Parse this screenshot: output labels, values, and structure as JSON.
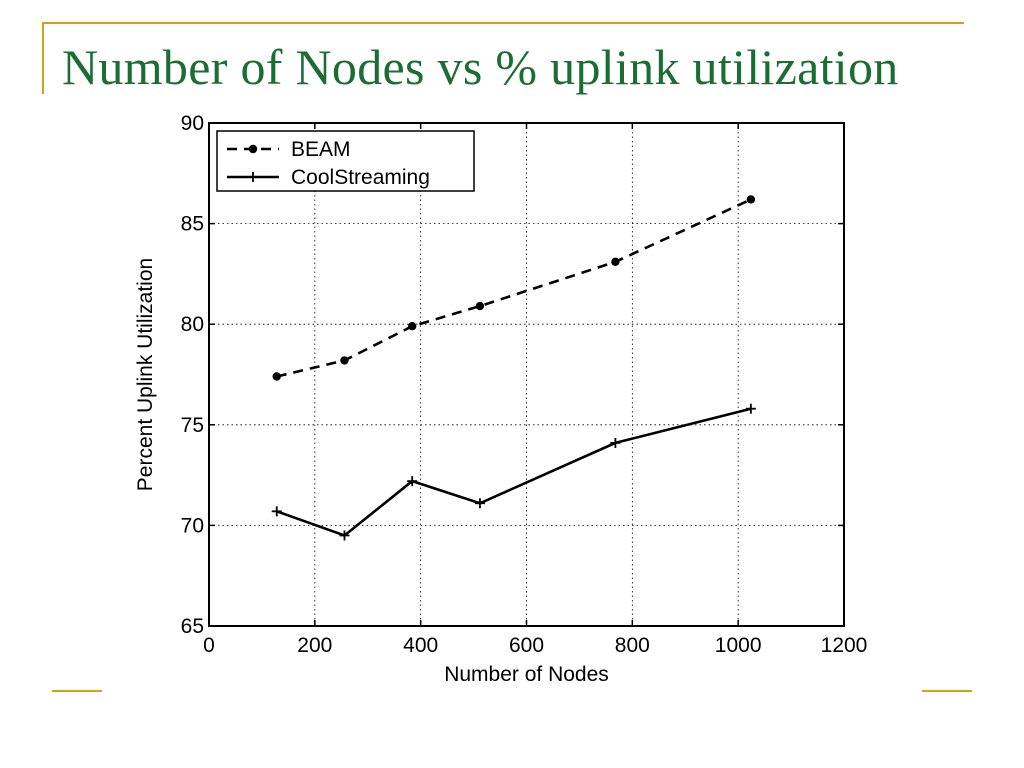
{
  "slide": {
    "title": "Number of Nodes vs % uplink utilization",
    "title_color": "#1a6e33",
    "accent_color": "#d0a21c"
  },
  "chart_data": {
    "type": "line",
    "title": "",
    "xlabel": "Number of Nodes",
    "ylabel": "Percent Uplink Utilization",
    "xlim": [
      0,
      1200
    ],
    "ylim": [
      65,
      90
    ],
    "xticks": [
      0,
      200,
      400,
      600,
      800,
      1000,
      1200
    ],
    "yticks": [
      65,
      70,
      75,
      80,
      85,
      90
    ],
    "grid": true,
    "legend_position": "top-left",
    "series": [
      {
        "name": "BEAM",
        "style": "dashed",
        "marker": "dot",
        "points": [
          [
            128,
            77.4
          ],
          [
            256,
            78.2
          ],
          [
            384,
            79.9
          ],
          [
            512,
            80.9
          ],
          [
            768,
            83.1
          ],
          [
            1024,
            86.2
          ]
        ]
      },
      {
        "name": "CoolStreaming",
        "style": "solid",
        "marker": "plus",
        "points": [
          [
            128,
            70.7
          ],
          [
            256,
            69.5
          ],
          [
            384,
            72.2
          ],
          [
            512,
            71.1
          ],
          [
            768,
            74.1
          ],
          [
            1024,
            75.8
          ]
        ]
      }
    ]
  }
}
